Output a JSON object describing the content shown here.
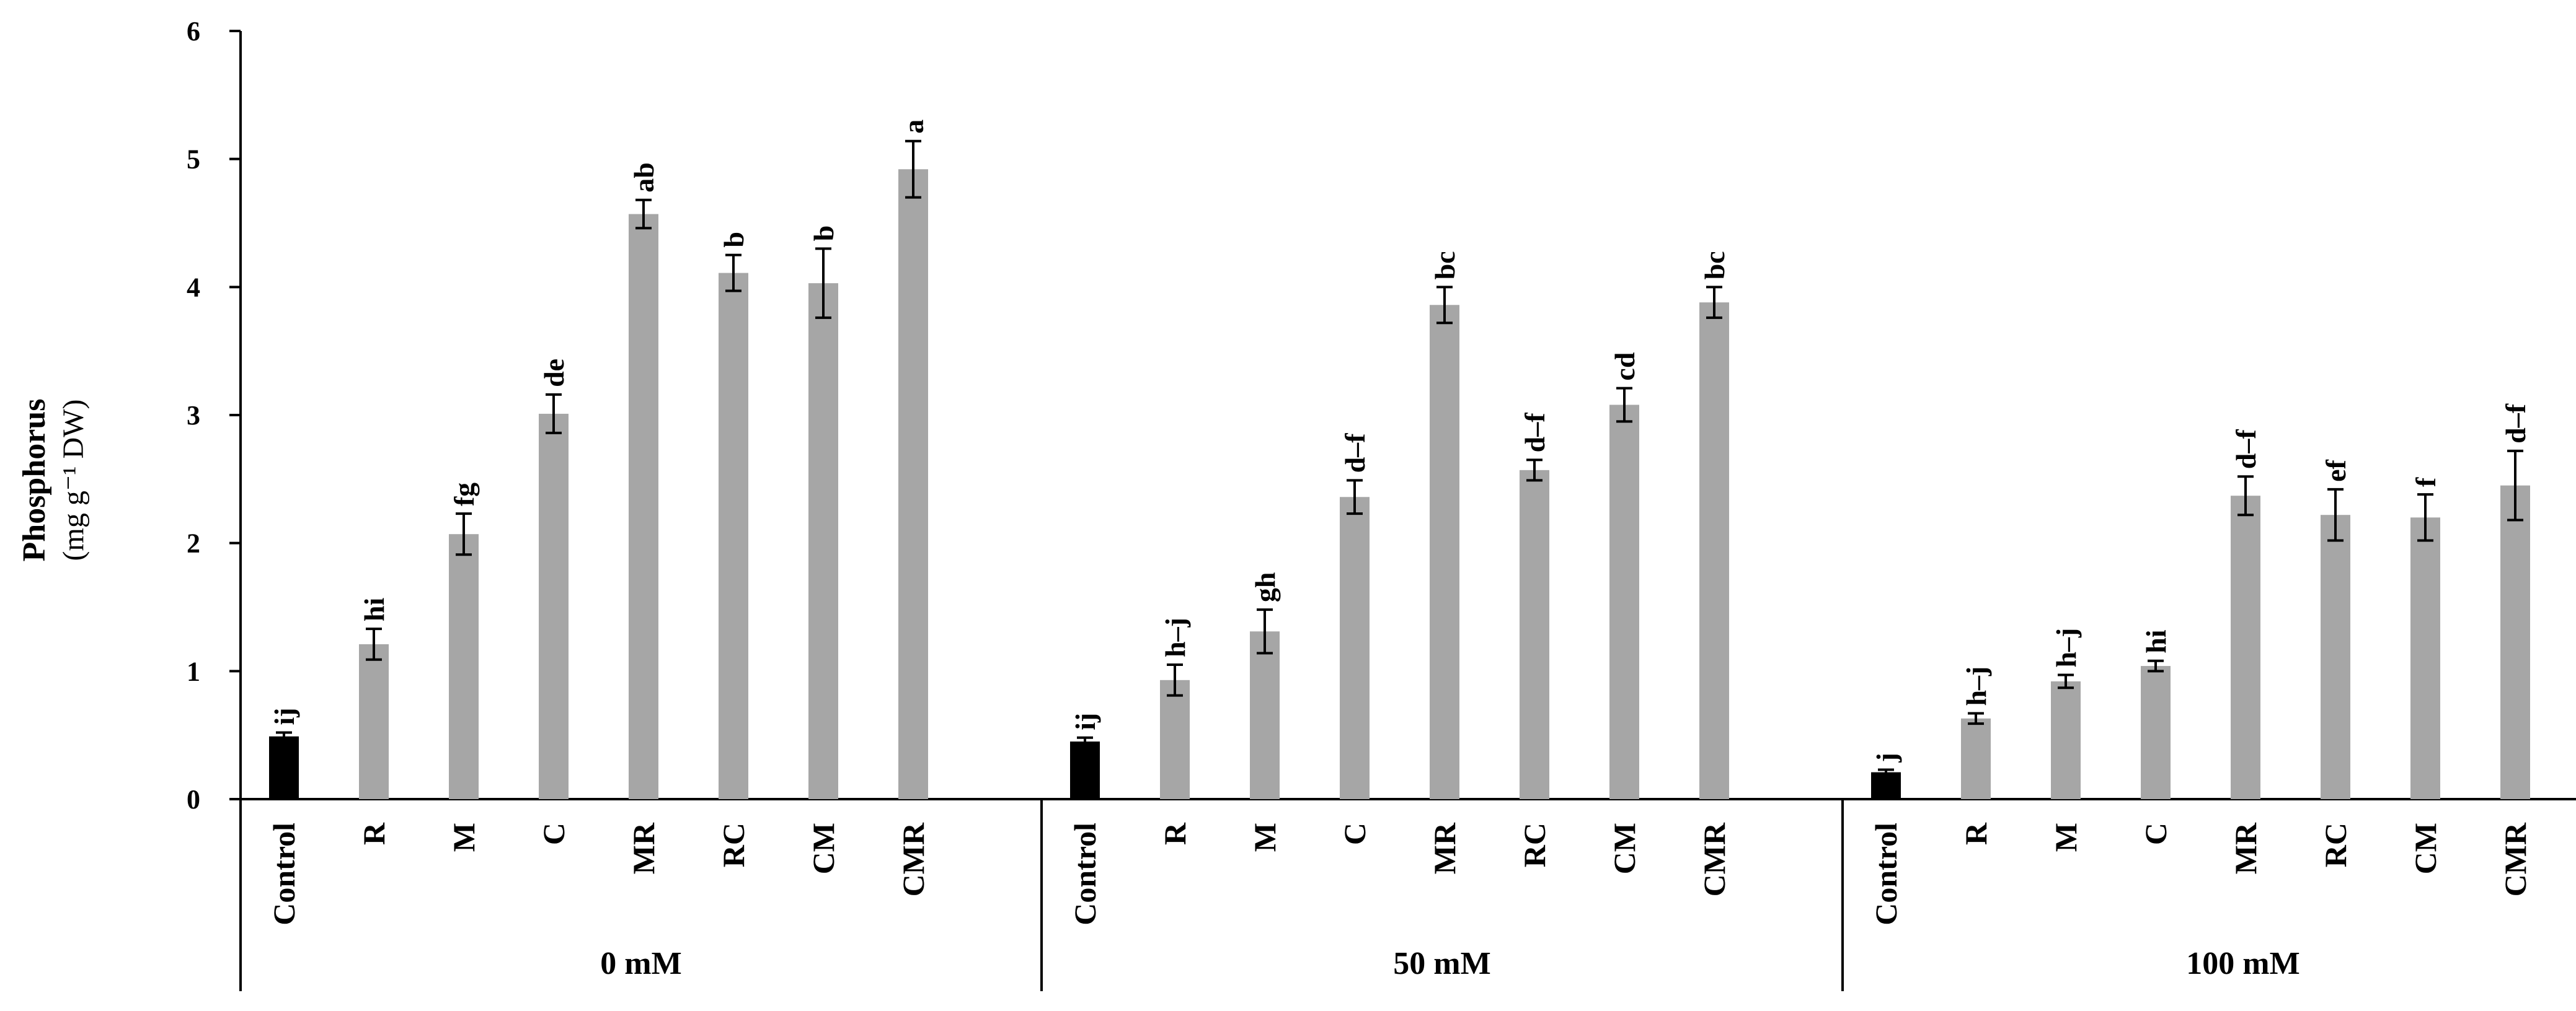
{
  "chart_data": {
    "type": "bar",
    "title": "",
    "ylabel": "Phosphorus",
    "ylabel_unit": "(mg g⁻¹ DW)",
    "ylim": [
      0,
      6
    ],
    "yticks": [
      "0",
      "1",
      "2",
      "3",
      "4",
      "5",
      "6"
    ],
    "grid": false,
    "categories": [
      "Control",
      "R",
      "M",
      "C",
      "MR",
      "RC",
      "CM",
      "CMR"
    ],
    "colors": {
      "control": "#000000",
      "treatment": "#a6a6a6",
      "axis": "#000000"
    },
    "groups": [
      {
        "label": "0 mM",
        "values": [
          0.49,
          1.21,
          2.07,
          3.01,
          4.57,
          4.11,
          4.03,
          4.92
        ],
        "errors": [
          0.03,
          0.12,
          0.16,
          0.15,
          0.11,
          0.14,
          0.27,
          0.22
        ],
        "letters": [
          "ij",
          "hi",
          "fg",
          "de",
          "ab",
          "b",
          "b",
          "a"
        ]
      },
      {
        "label": "50 mM",
        "values": [
          0.45,
          0.93,
          1.31,
          2.36,
          3.86,
          2.57,
          3.08,
          3.88
        ],
        "errors": [
          0.03,
          0.12,
          0.17,
          0.13,
          0.14,
          0.08,
          0.13,
          0.12
        ],
        "letters": [
          "ij",
          "h–j",
          "gh",
          "d–f",
          "bc",
          "d–f",
          "cd",
          "bc"
        ]
      },
      {
        "label": "100 mM",
        "values": [
          0.21,
          0.63,
          0.92,
          1.04,
          2.37,
          2.22,
          2.2,
          2.45
        ],
        "errors": [
          0.02,
          0.04,
          0.05,
          0.04,
          0.15,
          0.2,
          0.18,
          0.27
        ],
        "letters": [
          "j",
          "h–j",
          "h–j",
          "hi",
          "d–f",
          "ef",
          "f",
          "d–f"
        ]
      }
    ]
  }
}
